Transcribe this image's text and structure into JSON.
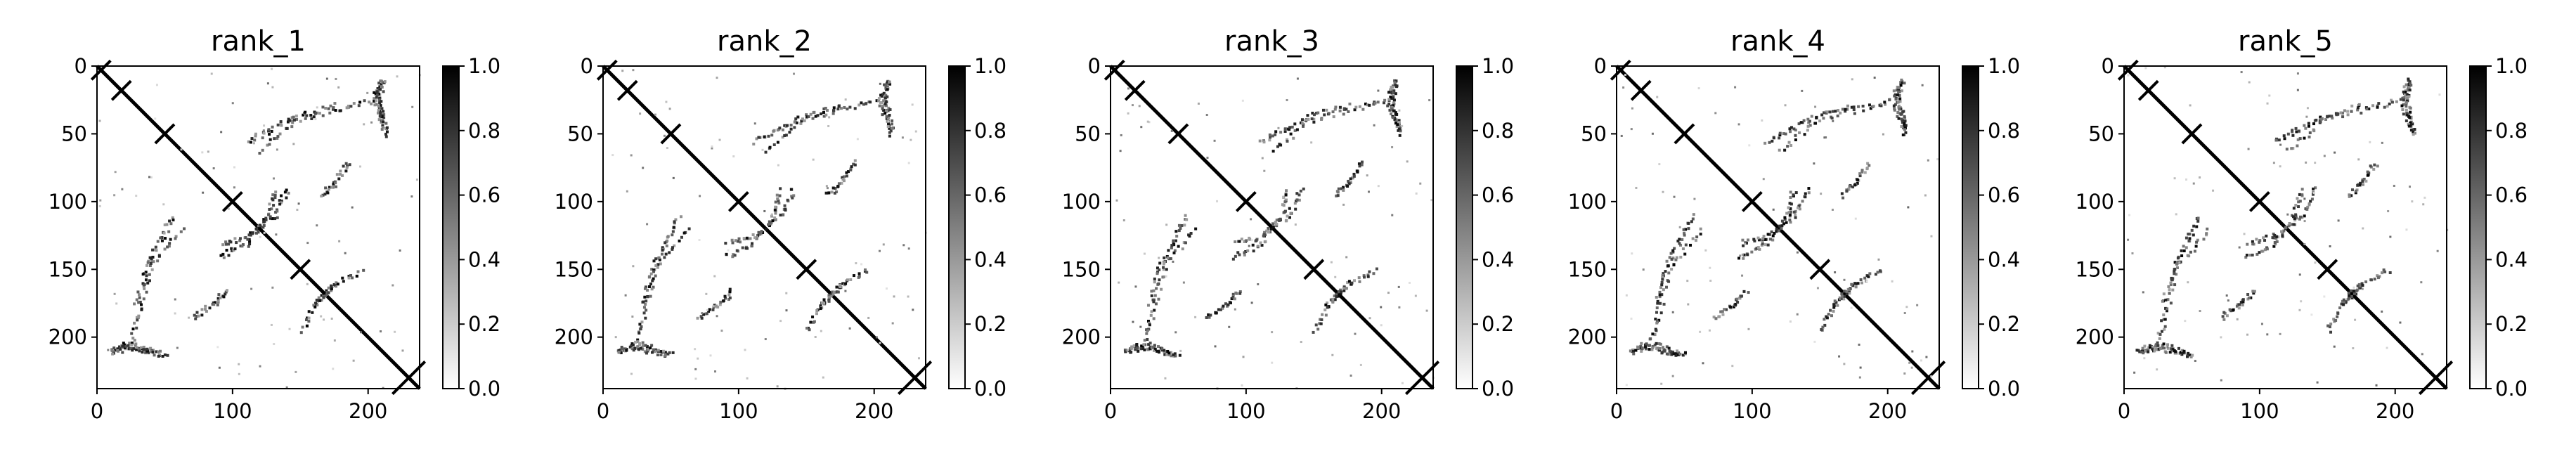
{
  "chart_data": [
    {
      "type": "heatmap",
      "title": "rank_1",
      "x_ticks": [
        "0",
        "100",
        "200"
      ],
      "y_ticks": [
        "0",
        "50",
        "100",
        "150",
        "200"
      ],
      "xlim": [
        0,
        238
      ],
      "ylim": [
        238,
        0
      ],
      "colorbar_ticks": [
        "0.0",
        "0.2",
        "0.4",
        "0.6",
        "0.8",
        "1.0"
      ],
      "colorbar_range": [
        0.0,
        1.0
      ],
      "colormap": "Greys",
      "description_of_values": "symmetric contact map, strong diagonal (value 1.0), sparse off-diagonal contacts"
    },
    {
      "type": "heatmap",
      "title": "rank_2",
      "x_ticks": [
        "0",
        "100",
        "200"
      ],
      "y_ticks": [
        "0",
        "50",
        "100",
        "150",
        "200"
      ],
      "xlim": [
        0,
        238
      ],
      "ylim": [
        238,
        0
      ],
      "colorbar_ticks": [
        "0.0",
        "0.2",
        "0.4",
        "0.6",
        "0.8",
        "1.0"
      ],
      "colorbar_range": [
        0.0,
        1.0
      ],
      "colormap": "Greys"
    },
    {
      "type": "heatmap",
      "title": "rank_3",
      "x_ticks": [
        "0",
        "100",
        "200"
      ],
      "y_ticks": [
        "0",
        "50",
        "100",
        "150",
        "200"
      ],
      "xlim": [
        0,
        238
      ],
      "ylim": [
        238,
        0
      ],
      "colorbar_ticks": [
        "0.0",
        "0.2",
        "0.4",
        "0.6",
        "0.8",
        "1.0"
      ],
      "colorbar_range": [
        0.0,
        1.0
      ],
      "colormap": "Greys"
    },
    {
      "type": "heatmap",
      "title": "rank_4",
      "x_ticks": [
        "0",
        "100",
        "200"
      ],
      "y_ticks": [
        "0",
        "50",
        "100",
        "150",
        "200"
      ],
      "xlim": [
        0,
        238
      ],
      "ylim": [
        238,
        0
      ],
      "colorbar_ticks": [
        "0.0",
        "0.2",
        "0.4",
        "0.6",
        "0.8",
        "1.0"
      ],
      "colorbar_range": [
        0.0,
        1.0
      ],
      "colormap": "Greys"
    },
    {
      "type": "heatmap",
      "title": "rank_5",
      "x_ticks": [
        "0",
        "100",
        "200"
      ],
      "y_ticks": [
        "0",
        "50",
        "100",
        "150",
        "200"
      ],
      "xlim": [
        0,
        238
      ],
      "ylim": [
        238,
        0
      ],
      "colorbar_ticks": [
        "0.0",
        "0.2",
        "0.4",
        "0.6",
        "0.8",
        "1.0"
      ],
      "colorbar_range": [
        0.0,
        1.0
      ],
      "colormap": "Greys"
    }
  ],
  "colors": {
    "max": "#000000",
    "min": "#ffffff",
    "axis": "#000000"
  }
}
